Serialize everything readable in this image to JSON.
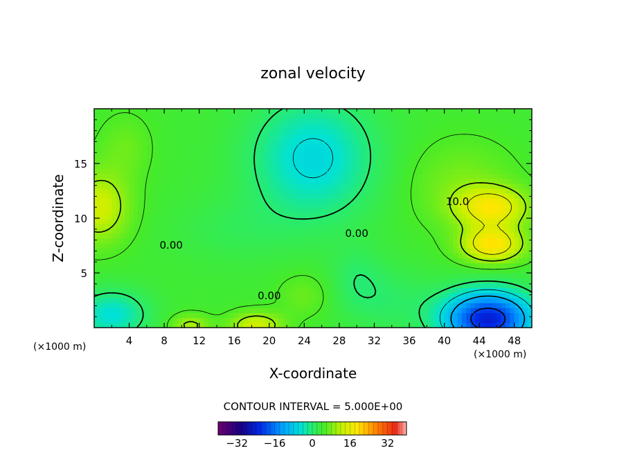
{
  "chart_data": {
    "type": "heatmap",
    "title": "zonal velocity",
    "xlabel": "X-coordinate",
    "ylabel": "Z-coordinate",
    "x_unit_label_left": "(×1000 m)",
    "x_unit_label_right": "(×1000 m)",
    "xlim": [
      0,
      50
    ],
    "ylim": [
      0,
      20
    ],
    "x_ticks": [
      4,
      8,
      12,
      16,
      20,
      24,
      28,
      32,
      36,
      40,
      44,
      48
    ],
    "y_ticks": [
      5,
      10,
      15
    ],
    "contour_interval_text": "CONTOUR INTERVAL = 5.000E+00",
    "contour_labels": [
      {
        "text": "0.00",
        "x": 8.8,
        "y": 7.2
      },
      {
        "text": "0.00",
        "x": 20.0,
        "y": 2.6
      },
      {
        "text": "0.00",
        "x": 30.0,
        "y": 8.3
      },
      {
        "text": "10.0",
        "x": 41.5,
        "y": 11.2
      }
    ],
    "colorbar": {
      "range": [
        -40,
        40
      ],
      "ticks": [
        -32,
        -16,
        0,
        16,
        32
      ]
    },
    "field_features": [
      {
        "name": "left jet core",
        "x": 0.5,
        "z": 11,
        "value": 14
      },
      {
        "name": "left upper lobe",
        "x": 3.0,
        "z": 17,
        "value": 6
      },
      {
        "name": "upper central minimum",
        "x": 25,
        "z": 15,
        "value": -6
      },
      {
        "name": "right jet core (upper)",
        "x": 45.5,
        "z": 11,
        "value": 17
      },
      {
        "name": "right jet core (lower)",
        "x": 45.5,
        "z": 7.5,
        "value": 20
      },
      {
        "name": "surface easterly",
        "x": 45,
        "z": 1,
        "value": -22
      },
      {
        "name": "surface easterly (left)",
        "x": 2,
        "z": 1.5,
        "value": -6
      },
      {
        "name": "surface westerly blob",
        "x": 18.5,
        "z": 0.3,
        "value": 14
      },
      {
        "name": "surface westerly blob (left)",
        "x": 11,
        "z": 0.3,
        "value": 10
      }
    ],
    "grid": false,
    "colormap": "rainbow"
  }
}
